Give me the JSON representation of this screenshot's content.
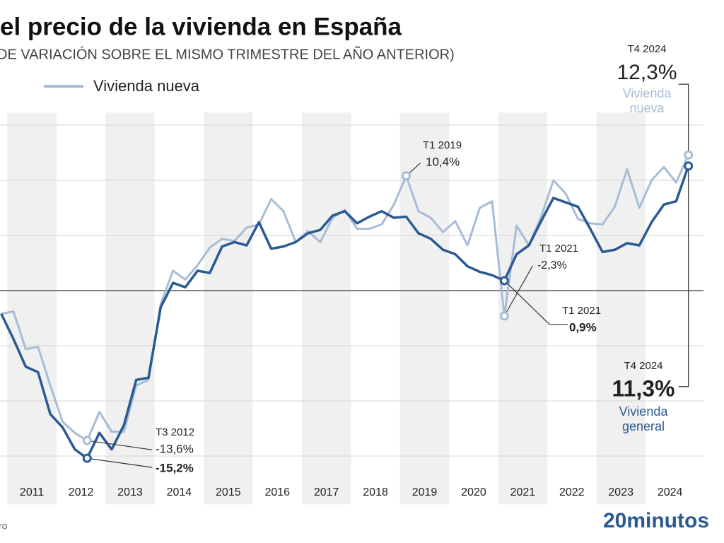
{
  "chart_data": {
    "type": "line",
    "title": "el precio de la vivienda en España",
    "subtitle": "DE VARIACIÓN SOBRE EL MISMO TRIMESTRE DEL AÑO ANTERIOR)",
    "source": "ro",
    "brand": "20minutos",
    "x": [
      2010.875,
      2011.125,
      2011.375,
      2011.625,
      2011.875,
      2012.125,
      2012.375,
      2012.625,
      2012.875,
      2013.125,
      2013.375,
      2013.625,
      2013.875,
      2014.125,
      2014.375,
      2014.625,
      2014.875,
      2015.125,
      2015.375,
      2015.625,
      2015.875,
      2016.125,
      2016.375,
      2016.625,
      2016.875,
      2017.125,
      2017.375,
      2017.625,
      2017.875,
      2018.125,
      2018.375,
      2018.625,
      2018.875,
      2019.125,
      2019.375,
      2019.625,
      2019.875,
      2020.125,
      2020.375,
      2020.625,
      2020.875,
      2021.125,
      2021.375,
      2021.625,
      2021.875,
      2022.125,
      2022.375,
      2022.625,
      2022.875,
      2023.125,
      2023.375,
      2023.625,
      2023.875,
      2024.125,
      2024.375,
      2024.625,
      2024.875
    ],
    "xlim": [
      2010.85,
      2025.6
    ],
    "xticks": [
      {
        "value": 2011.5,
        "label": "2011"
      },
      {
        "value": 2012.5,
        "label": "2012"
      },
      {
        "value": 2013.5,
        "label": "2013"
      },
      {
        "value": 2014.5,
        "label": "2014"
      },
      {
        "value": 2015.5,
        "label": "2015"
      },
      {
        "value": 2016.5,
        "label": "2016"
      },
      {
        "value": 2017.5,
        "label": "2017"
      },
      {
        "value": 2018.5,
        "label": "2018"
      },
      {
        "value": 2019.5,
        "label": "2019"
      },
      {
        "value": 2020.5,
        "label": "2020"
      },
      {
        "value": 2021.5,
        "label": "2021"
      },
      {
        "value": 2022.5,
        "label": "2022"
      },
      {
        "value": 2023.5,
        "label": "2023"
      },
      {
        "value": 2024.5,
        "label": "2024"
      }
    ],
    "ylim": [
      -16.5,
      15.5
    ],
    "yticks": [
      -15,
      -10,
      -5,
      0,
      5,
      10,
      15
    ],
    "grid": true,
    "series": [
      {
        "name": "Vivienda nueva",
        "color": "#a7bcd6",
        "values": [
          -2.1,
          -1.9,
          -5.3,
          -5.1,
          -8.6,
          -11.9,
          -12.9,
          -13.6,
          -11.0,
          -12.8,
          -12.8,
          -8.6,
          -8.1,
          -1.2,
          1.8,
          1.0,
          2.3,
          3.9,
          4.7,
          4.5,
          5.7,
          6.0,
          8.3,
          7.2,
          4.4,
          5.4,
          4.4,
          6.6,
          7.3,
          5.6,
          5.6,
          6.0,
          7.8,
          10.4,
          7.2,
          6.6,
          5.3,
          6.3,
          4.1,
          7.5,
          8.1,
          -2.3,
          5.9,
          4.1,
          6.7,
          10.0,
          8.8,
          6.5,
          6.1,
          6.0,
          7.6,
          11.0,
          7.5,
          10.0,
          11.2,
          9.8,
          12.3
        ],
        "value_labels": [
          null,
          null,
          null,
          null,
          null,
          null,
          null,
          "-13,6%",
          null,
          null,
          null,
          null,
          null,
          null,
          null,
          null,
          null,
          null,
          null,
          null,
          null,
          null,
          null,
          null,
          null,
          null,
          null,
          null,
          null,
          null,
          null,
          null,
          null,
          "10,4%",
          null,
          null,
          null,
          null,
          null,
          null,
          null,
          "-2,3%",
          null,
          null,
          null,
          null,
          null,
          null,
          null,
          null,
          null,
          null,
          null,
          null,
          null,
          null,
          "12,3%"
        ],
        "annotations": [
          {
            "text": "T3 2012",
            "x": 2012.625
          },
          {
            "text": "T1 2019",
            "x": 2019.125
          },
          {
            "text": "T1 2021",
            "x": 2021.125
          },
          {
            "text": "T4 2024",
            "x": 2024.875
          }
        ]
      },
      {
        "name": "Vivienda general",
        "color": "#2a5a93",
        "values": [
          -2.1,
          -4.4,
          -6.9,
          -7.4,
          -11.2,
          -12.4,
          -14.4,
          -15.2,
          -12.9,
          -14.4,
          -12.2,
          -8.1,
          -7.9,
          -1.5,
          0.7,
          0.3,
          1.8,
          1.6,
          4.0,
          4.4,
          4.1,
          6.2,
          3.8,
          4.0,
          4.4,
          5.2,
          5.5,
          6.8,
          7.2,
          6.1,
          6.7,
          7.2,
          6.6,
          6.7,
          5.2,
          4.7,
          3.7,
          3.3,
          2.2,
          1.7,
          1.4,
          0.9,
          3.3,
          4.1,
          6.3,
          8.4,
          8.0,
          7.6,
          5.6,
          3.5,
          3.7,
          4.3,
          4.1,
          6.2,
          7.8,
          8.1,
          11.3
        ],
        "value_labels": [
          null,
          null,
          null,
          null,
          null,
          null,
          null,
          "-15,2%",
          null,
          null,
          null,
          null,
          null,
          null,
          null,
          null,
          null,
          null,
          null,
          null,
          null,
          null,
          null,
          null,
          null,
          null,
          null,
          null,
          null,
          null,
          null,
          null,
          null,
          null,
          null,
          null,
          null,
          null,
          null,
          null,
          null,
          "0,9%",
          null,
          null,
          null,
          null,
          null,
          null,
          null,
          null,
          null,
          null,
          null,
          null,
          null,
          null,
          "11,3%"
        ],
        "annotations": [
          {
            "text": "T1 2021",
            "x": 2021.125
          },
          {
            "text": "T4 2024",
            "x": 2024.875
          }
        ]
      }
    ]
  }
}
